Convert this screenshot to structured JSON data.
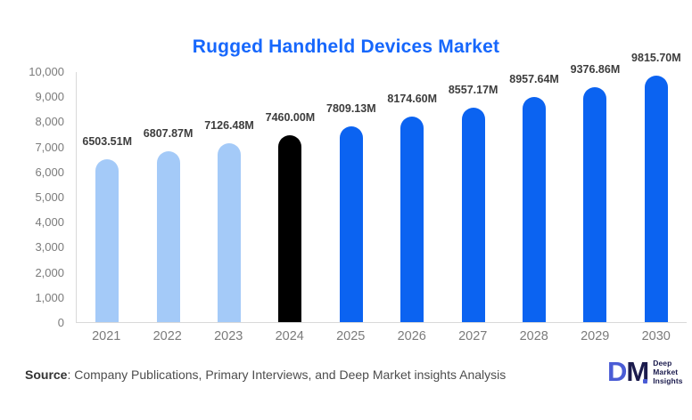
{
  "title": "Rugged Handheld Devices Market",
  "chart_data": {
    "type": "bar",
    "title": "Rugged Handheld Devices Market",
    "categories": [
      "2021",
      "2022",
      "2023",
      "2024",
      "2025",
      "2026",
      "2027",
      "2028",
      "2029",
      "2030"
    ],
    "values": [
      6503.51,
      6807.87,
      7126.48,
      7460.0,
      7809.13,
      8174.6,
      8557.17,
      8957.64,
      9376.86,
      9815.7
    ],
    "value_labels": [
      "6503.51M",
      "6807.87M",
      "7126.48M",
      "7460.00M",
      "7809.13M",
      "8174.60M",
      "8557.17M",
      "8957.64M",
      "9376.86M",
      "9815.70M"
    ],
    "bar_colors": [
      "#a4caf8",
      "#a4caf8",
      "#a4caf8",
      "#000000",
      "#0b63f1",
      "#0b63f1",
      "#0b63f1",
      "#0b63f1",
      "#0b63f1",
      "#0b63f1"
    ],
    "xlabel": "",
    "ylabel": "",
    "ylim": [
      0,
      10000
    ],
    "ytick_step": 1000,
    "ytick_labels_top_to_bottom": [
      "10,000",
      "9,000",
      "8,000",
      "7,000",
      "6,000",
      "5,000",
      "4,000",
      "3,000",
      "2,000",
      "1,000",
      "0"
    ],
    "grid": false,
    "legend_position": "none"
  },
  "colors": {
    "title": "#1667fc",
    "historical_bar": "#a4caf8",
    "base_year_bar": "#000000",
    "forecast_bar": "#0b63f1",
    "axis_tick_label": "#7b7b7b",
    "data_label": "#3d3d3d",
    "axis_line": "#d9d9d9"
  },
  "footer": {
    "source_label": "Source",
    "source_text": ": Company Publications, Primary Interviews, and Deep Market insights Analysis"
  },
  "logo": {
    "mark_d": "D",
    "mark_m": "M",
    "text_lines": [
      "Deep",
      "Market",
      "Insights"
    ],
    "d_color": "#4a5cd5",
    "m_color": "#1b1b4d",
    "dot_color": "#4a5cd5",
    "text_color": "#1b1b4d"
  }
}
